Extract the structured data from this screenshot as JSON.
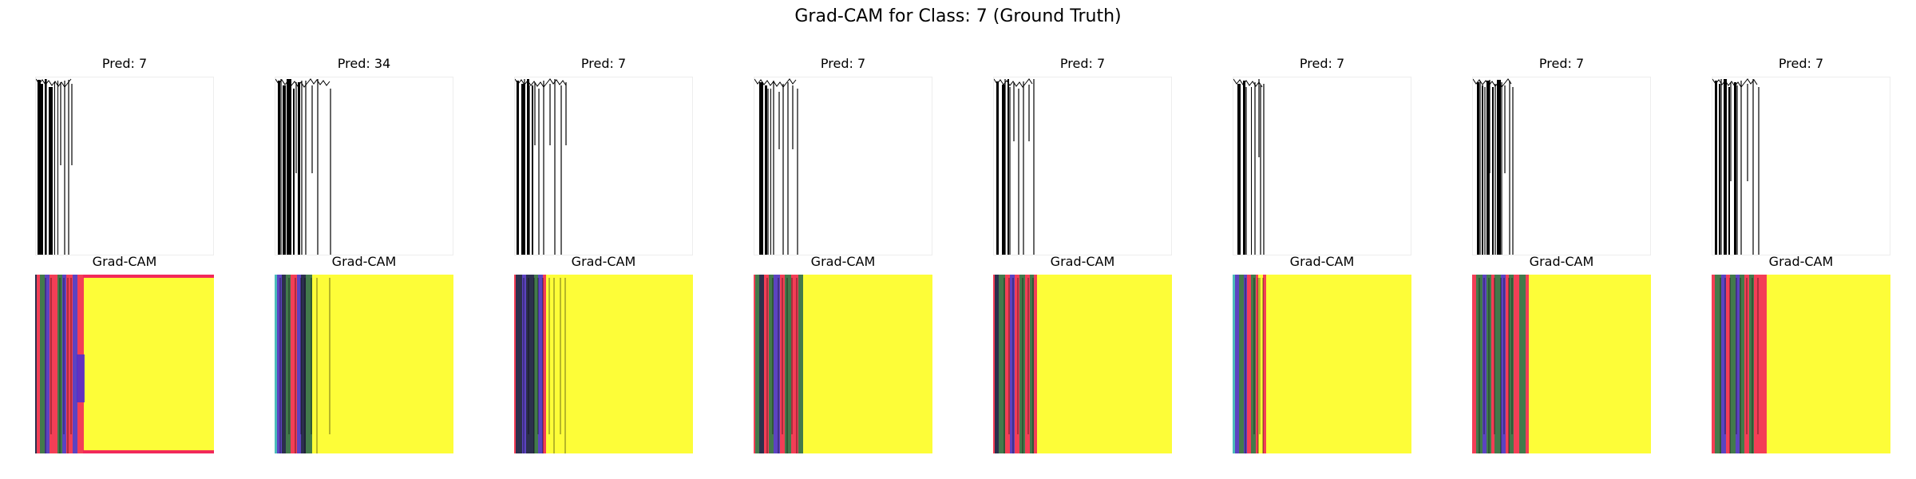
{
  "figure": {
    "suptitle": "Grad-CAM for Class: 7 (Ground Truth)"
  },
  "panels": [
    {
      "pred_title": "Pred: 7",
      "cam_title": "Grad-CAM"
    },
    {
      "pred_title": "Pred: 34",
      "cam_title": "Grad-CAM"
    },
    {
      "pred_title": "Pred: 7",
      "cam_title": "Grad-CAM"
    },
    {
      "pred_title": "Pred: 7",
      "cam_title": "Grad-CAM"
    },
    {
      "pred_title": "Pred: 7",
      "cam_title": "Grad-CAM"
    },
    {
      "pred_title": "Pred: 7",
      "cam_title": "Grad-CAM"
    },
    {
      "pred_title": "Pred: 7",
      "cam_title": "Grad-CAM"
    },
    {
      "pred_title": "Pred: 7",
      "cam_title": "Grad-CAM"
    }
  ],
  "chart_data": {
    "type": "heatmap",
    "title": "Grad-CAM for Class: 7 (Ground Truth)",
    "ground_truth_class": 7,
    "predictions": [
      7,
      34,
      7,
      7,
      7,
      7,
      7,
      7
    ],
    "colors": {
      "cam_background": "#fdfd38",
      "cam_hot": "#f2295a",
      "cam_mid": "#2f6b4e",
      "cam_cool": "#4a2fd0",
      "cam_cold": "#151a50",
      "cam_cyan": "#37b5c9",
      "ink": "#000000"
    }
  }
}
